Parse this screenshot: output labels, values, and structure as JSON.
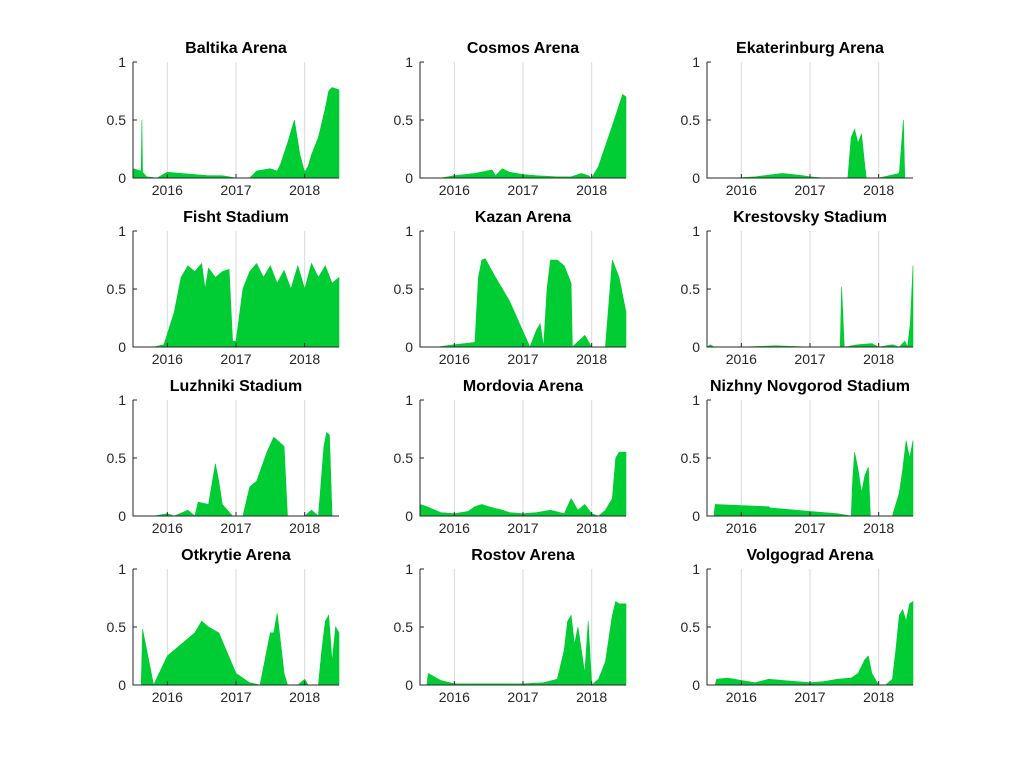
{
  "chart_data": {
    "type": "area",
    "color": "#00cc33",
    "grid": "vertical",
    "xlim": [
      2015.5,
      2018.5
    ],
    "ylim": [
      0,
      1
    ],
    "xticks": [
      2016,
      2017,
      2018
    ],
    "xtick_labels": [
      "2016",
      "2017",
      "2018"
    ],
    "yticks": [
      0,
      0.5,
      1
    ],
    "ytick_labels": [
      "0",
      "0.5",
      "1"
    ],
    "panels": [
      {
        "title": "Baltika Arena",
        "x": [
          2015.5,
          2015.62,
          2015.63,
          2015.64,
          2015.7,
          2015.85,
          2016.0,
          2016.2,
          2016.4,
          2016.6,
          2016.8,
          2016.9,
          2017.0,
          2017.2,
          2017.3,
          2017.5,
          2017.6,
          2017.65,
          2017.75,
          2017.85,
          2017.93,
          2018.0,
          2018.05,
          2018.1,
          2018.2,
          2018.3,
          2018.35,
          2018.4,
          2018.5
        ],
        "y": [
          0.08,
          0.06,
          0.5,
          0.05,
          0.01,
          0.0,
          0.05,
          0.04,
          0.03,
          0.02,
          0.02,
          0.01,
          0.0,
          0.0,
          0.06,
          0.08,
          0.06,
          0.12,
          0.3,
          0.5,
          0.2,
          0.05,
          0.1,
          0.2,
          0.35,
          0.6,
          0.75,
          0.78,
          0.76
        ]
      },
      {
        "title": "Cosmos Arena",
        "x": [
          2015.5,
          2015.8,
          2016.0,
          2016.3,
          2016.55,
          2016.6,
          2016.7,
          2016.8,
          2017.0,
          2017.2,
          2017.5,
          2017.7,
          2017.85,
          2017.95,
          2018.0,
          2018.1,
          2018.3,
          2018.45,
          2018.5
        ],
        "y": [
          0.0,
          0.0,
          0.02,
          0.04,
          0.07,
          0.02,
          0.08,
          0.05,
          0.03,
          0.02,
          0.01,
          0.01,
          0.04,
          0.02,
          0.0,
          0.1,
          0.45,
          0.72,
          0.7
        ]
      },
      {
        "title": "Ekaterinburg Arena",
        "x": [
          2015.5,
          2015.9,
          2016.2,
          2016.6,
          2016.9,
          2017.0,
          2017.2,
          2017.4,
          2017.55,
          2017.6,
          2017.65,
          2017.7,
          2017.75,
          2017.8,
          2017.82,
          2018.0,
          2018.3,
          2018.36,
          2018.38,
          2018.4,
          2018.5
        ],
        "y": [
          0.0,
          0.0,
          0.01,
          0.04,
          0.02,
          0.01,
          0.0,
          0.0,
          0.0,
          0.35,
          0.42,
          0.3,
          0.38,
          0.1,
          0.0,
          0.0,
          0.04,
          0.5,
          0.0,
          0.0,
          0.0
        ]
      },
      {
        "title": "Fisht Stadium",
        "x": [
          2015.5,
          2015.8,
          2015.95,
          2016.1,
          2016.2,
          2016.3,
          2016.4,
          2016.5,
          2016.55,
          2016.6,
          2016.7,
          2016.8,
          2016.9,
          2016.95,
          2017.0,
          2017.1,
          2017.2,
          2017.3,
          2017.4,
          2017.5,
          2017.6,
          2017.7,
          2017.8,
          2017.9,
          2018.0,
          2018.1,
          2018.2,
          2018.3,
          2018.4,
          2018.5
        ],
        "y": [
          0.0,
          0.0,
          0.02,
          0.3,
          0.6,
          0.7,
          0.65,
          0.72,
          0.5,
          0.68,
          0.6,
          0.65,
          0.67,
          0.05,
          0.05,
          0.5,
          0.65,
          0.72,
          0.6,
          0.7,
          0.55,
          0.66,
          0.5,
          0.7,
          0.5,
          0.72,
          0.6,
          0.7,
          0.55,
          0.6
        ]
      },
      {
        "title": "Kazan Arena",
        "x": [
          2015.5,
          2015.75,
          2016.0,
          2016.3,
          2016.35,
          2016.4,
          2016.45,
          2016.6,
          2016.8,
          2016.95,
          2017.1,
          2017.2,
          2017.25,
          2017.3,
          2017.35,
          2017.4,
          2017.5,
          2017.6,
          2017.7,
          2017.72,
          2017.9,
          2018.0,
          2018.2,
          2018.3,
          2018.4,
          2018.5
        ],
        "y": [
          0.0,
          0.0,
          0.02,
          0.04,
          0.6,
          0.75,
          0.76,
          0.6,
          0.4,
          0.2,
          0.0,
          0.15,
          0.2,
          0.0,
          0.5,
          0.75,
          0.75,
          0.7,
          0.55,
          0.0,
          0.1,
          0.0,
          0.0,
          0.75,
          0.6,
          0.3
        ]
      },
      {
        "title": "Krestovsky Stadium",
        "x": [
          2015.5,
          2015.55,
          2015.6,
          2016.0,
          2016.5,
          2017.0,
          2017.3,
          2017.4,
          2017.44,
          2017.46,
          2017.5,
          2017.7,
          2017.9,
          2018.0,
          2018.2,
          2018.3,
          2018.38,
          2018.42,
          2018.46,
          2018.5
        ],
        "y": [
          0.0,
          0.02,
          0.0,
          0.0,
          0.01,
          0.0,
          0.0,
          0.0,
          0.0,
          0.52,
          0.0,
          0.02,
          0.03,
          0.0,
          0.02,
          0.0,
          0.05,
          0.0,
          0.2,
          0.7
        ]
      },
      {
        "title": "Luzhniki Stadium",
        "x": [
          2015.5,
          2015.8,
          2016.0,
          2016.1,
          2016.3,
          2016.4,
          2016.45,
          2016.6,
          2016.7,
          2016.75,
          2016.8,
          2016.95,
          2017.1,
          2017.2,
          2017.3,
          2017.45,
          2017.55,
          2017.7,
          2017.75,
          2018.0,
          2018.1,
          2018.2,
          2018.28,
          2018.32,
          2018.36,
          2018.4,
          2018.5
        ],
        "y": [
          0.0,
          0.0,
          0.02,
          0.0,
          0.05,
          0.0,
          0.12,
          0.1,
          0.45,
          0.3,
          0.1,
          0.0,
          0.0,
          0.25,
          0.3,
          0.55,
          0.68,
          0.6,
          0.0,
          0.0,
          0.05,
          0.0,
          0.6,
          0.72,
          0.7,
          0.0,
          0.0
        ]
      },
      {
        "title": "Mordovia Arena",
        "x": [
          2015.5,
          2015.6,
          2015.8,
          2016.0,
          2016.2,
          2016.3,
          2016.4,
          2016.5,
          2016.7,
          2016.8,
          2017.0,
          2017.2,
          2017.4,
          2017.6,
          2017.7,
          2017.8,
          2017.9,
          2018.0,
          2018.1,
          2018.2,
          2018.25,
          2018.3,
          2018.35,
          2018.4,
          2018.5
        ],
        "y": [
          0.1,
          0.08,
          0.03,
          0.02,
          0.04,
          0.08,
          0.1,
          0.08,
          0.05,
          0.03,
          0.02,
          0.03,
          0.05,
          0.02,
          0.15,
          0.05,
          0.1,
          0.02,
          0.0,
          0.05,
          0.1,
          0.15,
          0.5,
          0.55,
          0.55
        ]
      },
      {
        "title": "Nizhny Novgorod Stadium",
        "x": [
          2015.5,
          2015.6,
          2015.62,
          2016.0,
          2016.4,
          2016.42,
          2017.0,
          2017.4,
          2017.6,
          2017.62,
          2017.65,
          2017.7,
          2017.75,
          2017.8,
          2017.85,
          2017.88,
          2018.0,
          2018.2,
          2018.3,
          2018.35,
          2018.4,
          2018.45,
          2018.5
        ],
        "y": [
          0.0,
          0.0,
          0.1,
          0.09,
          0.08,
          0.07,
          0.04,
          0.02,
          0.0,
          0.3,
          0.55,
          0.4,
          0.2,
          0.35,
          0.42,
          0.0,
          0.0,
          0.0,
          0.2,
          0.4,
          0.65,
          0.5,
          0.65
        ]
      },
      {
        "title": "Otkrytie Arena",
        "x": [
          2015.5,
          2015.62,
          2015.64,
          2015.8,
          2016.0,
          2016.4,
          2016.5,
          2016.6,
          2016.75,
          2017.0,
          2017.2,
          2017.35,
          2017.5,
          2017.55,
          2017.6,
          2017.7,
          2017.75,
          2017.9,
          2018.0,
          2018.05,
          2018.2,
          2018.25,
          2018.3,
          2018.35,
          2018.4,
          2018.45,
          2018.5
        ],
        "y": [
          0.0,
          0.0,
          0.48,
          0.0,
          0.25,
          0.45,
          0.55,
          0.5,
          0.45,
          0.1,
          0.02,
          0.0,
          0.45,
          0.45,
          0.62,
          0.1,
          0.0,
          0.0,
          0.05,
          0.0,
          0.0,
          0.3,
          0.55,
          0.6,
          0.2,
          0.5,
          0.45
        ]
      },
      {
        "title": "Rostov Arena",
        "x": [
          2015.5,
          2015.6,
          2015.62,
          2015.8,
          2016.0,
          2016.5,
          2017.0,
          2017.3,
          2017.5,
          2017.6,
          2017.65,
          2017.7,
          2017.75,
          2017.8,
          2017.9,
          2017.95,
          2018.0,
          2018.1,
          2018.2,
          2018.3,
          2018.35,
          2018.4,
          2018.5
        ],
        "y": [
          0.0,
          0.0,
          0.1,
          0.04,
          0.01,
          0.01,
          0.01,
          0.02,
          0.05,
          0.3,
          0.55,
          0.6,
          0.35,
          0.5,
          0.1,
          0.55,
          0.0,
          0.05,
          0.2,
          0.6,
          0.72,
          0.7,
          0.7
        ]
      },
      {
        "title": "Volgograd Arena",
        "x": [
          2015.5,
          2015.62,
          2015.64,
          2015.8,
          2016.0,
          2016.2,
          2016.4,
          2016.6,
          2016.8,
          2017.0,
          2017.2,
          2017.4,
          2017.6,
          2017.7,
          2017.8,
          2017.85,
          2017.9,
          2018.0,
          2018.1,
          2018.2,
          2018.25,
          2018.3,
          2018.35,
          2018.4,
          2018.45,
          2018.5
        ],
        "y": [
          0.0,
          0.0,
          0.05,
          0.06,
          0.04,
          0.02,
          0.05,
          0.04,
          0.03,
          0.02,
          0.03,
          0.05,
          0.06,
          0.1,
          0.22,
          0.25,
          0.1,
          0.0,
          0.0,
          0.05,
          0.3,
          0.6,
          0.65,
          0.55,
          0.7,
          0.72
        ]
      }
    ]
  }
}
